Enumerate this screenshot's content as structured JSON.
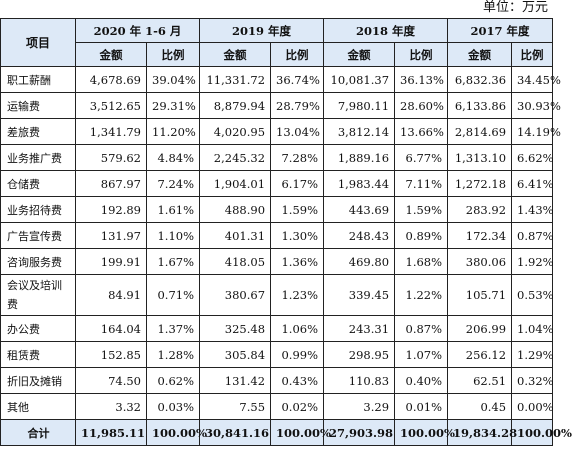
{
  "unit_label": "单位：万元",
  "header": {
    "item": "项目",
    "periods": [
      "2020 年 1-6 月",
      "2019 年度",
      "2018 年度",
      "2017 年度"
    ],
    "amount": "金额",
    "ratio": "比例"
  },
  "rows": [
    {
      "label": "职工薪酬",
      "v": [
        "4,678.69",
        "39.04%",
        "11,331.72",
        "36.74%",
        "10,081.37",
        "36.13%",
        "6,832.36",
        "34.45%"
      ]
    },
    {
      "label": "运输费",
      "v": [
        "3,512.65",
        "29.31%",
        "8,879.94",
        "28.79%",
        "7,980.11",
        "28.60%",
        "6,133.86",
        "30.93%"
      ]
    },
    {
      "label": "差旅费",
      "v": [
        "1,341.79",
        "11.20%",
        "4,020.95",
        "13.04%",
        "3,812.14",
        "13.66%",
        "2,814.69",
        "14.19%"
      ]
    },
    {
      "label": "业务推广费",
      "v": [
        "579.62",
        "4.84%",
        "2,245.32",
        "7.28%",
        "1,889.16",
        "6.77%",
        "1,313.10",
        "6.62%"
      ]
    },
    {
      "label": "仓储费",
      "v": [
        "867.97",
        "7.24%",
        "1,904.01",
        "6.17%",
        "1,983.44",
        "7.11%",
        "1,272.18",
        "6.41%"
      ]
    },
    {
      "label": "业务招待费",
      "v": [
        "192.89",
        "1.61%",
        "488.90",
        "1.59%",
        "443.69",
        "1.59%",
        "283.92",
        "1.43%"
      ]
    },
    {
      "label": "广告宣传费",
      "v": [
        "131.97",
        "1.10%",
        "401.31",
        "1.30%",
        "248.43",
        "0.89%",
        "172.34",
        "0.87%"
      ]
    },
    {
      "label": "咨询服务费",
      "v": [
        "199.91",
        "1.67%",
        "418.05",
        "1.36%",
        "469.80",
        "1.68%",
        "380.06",
        "1.92%"
      ]
    },
    {
      "label": "会议及培训费",
      "v": [
        "84.91",
        "0.71%",
        "380.67",
        "1.23%",
        "339.45",
        "1.22%",
        "105.71",
        "0.53%"
      ]
    },
    {
      "label": "办公费",
      "v": [
        "164.04",
        "1.37%",
        "325.48",
        "1.06%",
        "243.31",
        "0.87%",
        "206.99",
        "1.04%"
      ]
    },
    {
      "label": "租赁费",
      "v": [
        "152.85",
        "1.28%",
        "305.84",
        "0.99%",
        "298.95",
        "1.07%",
        "256.12",
        "1.29%"
      ]
    },
    {
      "label": "折旧及摊销",
      "v": [
        "74.50",
        "0.62%",
        "131.42",
        "0.43%",
        "110.83",
        "0.40%",
        "62.51",
        "0.32%"
      ]
    },
    {
      "label": "其他",
      "v": [
        "3.32",
        "0.03%",
        "7.55",
        "0.02%",
        "3.29",
        "0.01%",
        "0.45",
        "0.00%"
      ]
    }
  ],
  "total": {
    "label": "合计",
    "v": [
      "11,985.11",
      "100.00%",
      "30,841.16",
      "100.00%",
      "27,903.98",
      "100.00%",
      "19,834.28",
      "100.00%"
    ]
  },
  "colors": {
    "header_bg": "#dde9f7",
    "border": "#222222"
  }
}
